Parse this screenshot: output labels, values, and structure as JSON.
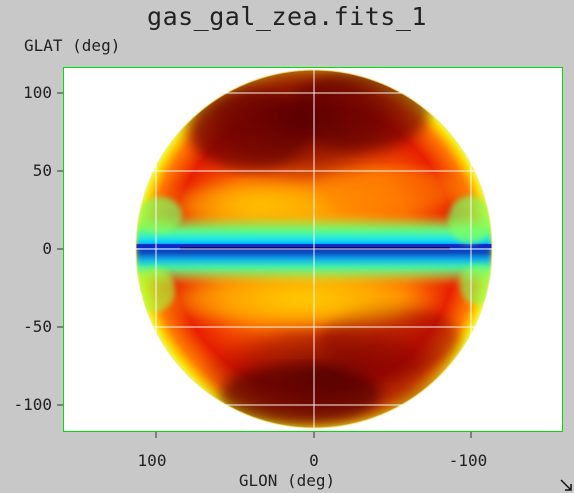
{
  "window": {
    "title": "gas_gal_zea.fits_1"
  },
  "plot": {
    "ylabel": "GLAT (deg)",
    "xlabel": "GLON (deg)",
    "y_ticks": [
      "100",
      "50",
      "0",
      "-50",
      "-100"
    ],
    "x_ticks": [
      "100",
      "0",
      "-100"
    ],
    "frame_color": "#00e000",
    "grid_color": "#ffffff",
    "background": "#ffffff"
  },
  "chart_data": {
    "type": "heatmap",
    "title": "gas_gal_zea.fits_1",
    "xlabel": "GLON (deg)",
    "ylabel": "GLAT (deg)",
    "x_ticks": [
      100,
      0,
      -100
    ],
    "y_ticks": [
      100,
      50,
      0,
      -50,
      -100
    ],
    "xlim": [
      165,
      -165
    ],
    "ylim": [
      -117,
      117
    ],
    "grid": true,
    "colormap": "heat-rainbow",
    "projection": "zenithal equal area"
  },
  "icons": {
    "resize": "resize-grip-icon"
  }
}
